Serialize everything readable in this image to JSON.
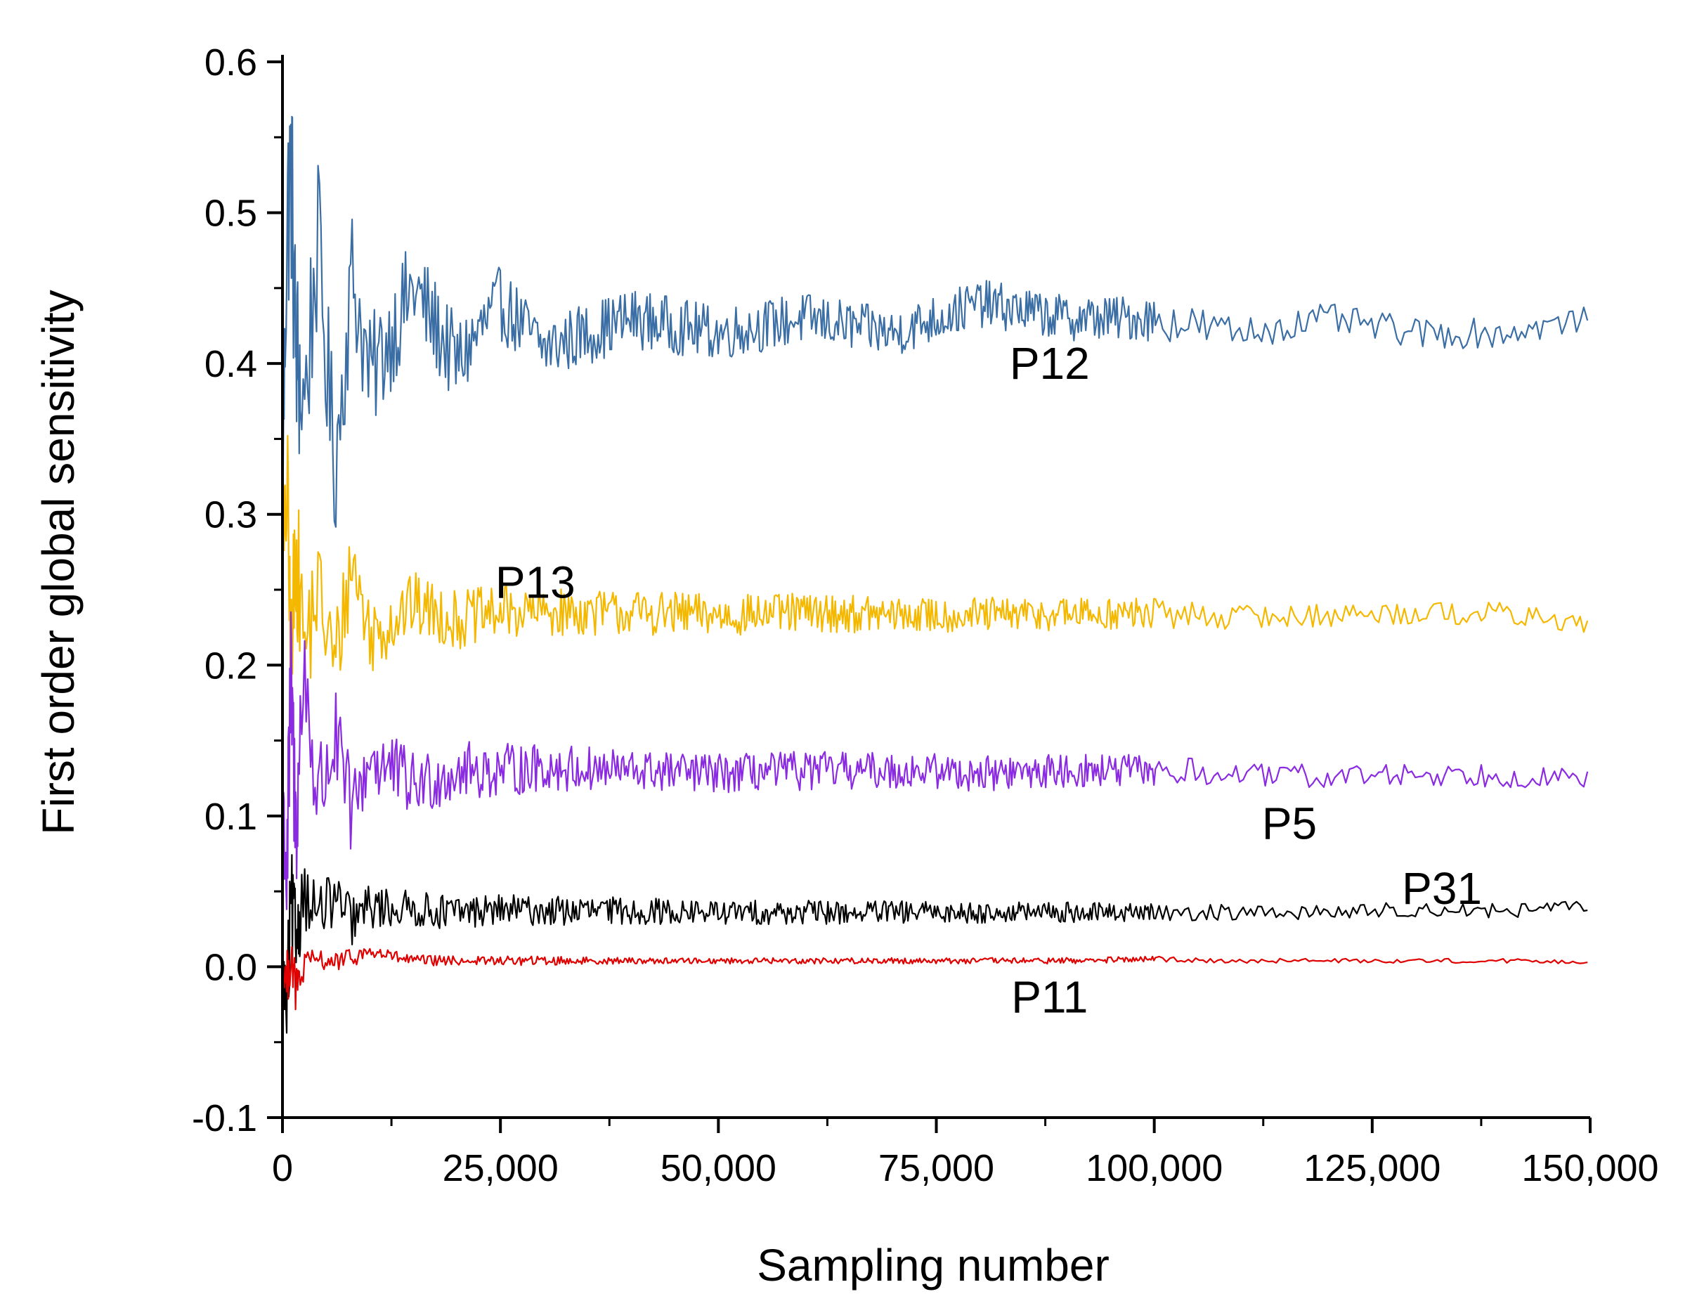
{
  "chart_data": {
    "type": "line",
    "title": "",
    "xlabel": "Sampling number",
    "ylabel": "First order global sensitivity",
    "xlim": [
      0,
      150000
    ],
    "ylim": [
      -0.1,
      0.6
    ],
    "xticks": [
      0,
      25000,
      50000,
      75000,
      100000,
      125000,
      150000
    ],
    "xtick_labels": [
      "0",
      "25,000",
      "50,000",
      "75,000",
      "100,000",
      "125,000",
      "150,000"
    ],
    "yticks": [
      -0.1,
      0.0,
      0.1,
      0.2,
      0.3,
      0.4,
      0.5,
      0.6
    ],
    "ytick_labels": [
      "-0.1",
      "0.0",
      "0.1",
      "0.2",
      "0.3",
      "0.4",
      "0.5",
      "0.6"
    ],
    "grid": false,
    "legend": "none (series labelled inline)",
    "series": [
      {
        "name": "P12",
        "color": "#3a6ea5",
        "label_at": [
          88000,
          0.4
        ],
        "x": [
          0,
          500,
          1000,
          1500,
          2500,
          4000,
          6000,
          8000,
          10000,
          15000,
          20000,
          25000,
          30000,
          40000,
          50000,
          60000,
          70000,
          75000,
          80000,
          90000,
          100000,
          110000,
          120000,
          130000,
          140000,
          150000
        ],
        "values": [
          0.31,
          0.49,
          0.53,
          0.41,
          0.37,
          0.48,
          0.33,
          0.46,
          0.39,
          0.45,
          0.4,
          0.44,
          0.41,
          0.43,
          0.42,
          0.43,
          0.42,
          0.43,
          0.44,
          0.43,
          0.43,
          0.42,
          0.43,
          0.42,
          0.42,
          0.43
        ],
        "noise": [
          0.02,
          0.07,
          0.08,
          0.07,
          0.06,
          0.06,
          0.05,
          0.045,
          0.04,
          0.035,
          0.03,
          0.025,
          0.022,
          0.02,
          0.018,
          0.017,
          0.016,
          0.016,
          0.016,
          0.015,
          0.015,
          0.011,
          0.01,
          0.01,
          0.01,
          0.008
        ]
      },
      {
        "name": "P13",
        "color": "#f5b800",
        "label_at": [
          29000,
          0.255
        ],
        "x": [
          0,
          500,
          1000,
          1500,
          2500,
          4000,
          6000,
          8000,
          10000,
          15000,
          20000,
          25000,
          30000,
          40000,
          50000,
          60000,
          70000,
          75000,
          80000,
          90000,
          100000,
          110000,
          120000,
          130000,
          140000,
          150000
        ],
        "values": [
          0.25,
          0.32,
          0.19,
          0.28,
          0.21,
          0.25,
          0.2,
          0.27,
          0.22,
          0.24,
          0.23,
          0.235,
          0.235,
          0.235,
          0.233,
          0.235,
          0.233,
          0.233,
          0.233,
          0.234,
          0.234,
          0.232,
          0.233,
          0.235,
          0.234,
          0.227
        ],
        "noise": [
          0.02,
          0.06,
          0.06,
          0.05,
          0.045,
          0.04,
          0.035,
          0.03,
          0.028,
          0.022,
          0.02,
          0.018,
          0.016,
          0.015,
          0.014,
          0.013,
          0.012,
          0.012,
          0.012,
          0.011,
          0.011,
          0.008,
          0.008,
          0.008,
          0.008,
          0.006
        ]
      },
      {
        "name": "P5",
        "color": "#8a2be2",
        "label_at": [
          115500,
          0.095
        ],
        "x": [
          0,
          500,
          1000,
          1500,
          2500,
          4000,
          6000,
          8000,
          10000,
          15000,
          20000,
          25000,
          30000,
          40000,
          50000,
          60000,
          70000,
          75000,
          80000,
          90000,
          100000,
          110000,
          120000,
          130000,
          140000,
          150000
        ],
        "values": [
          0.12,
          0.06,
          0.19,
          0.09,
          0.2,
          0.11,
          0.15,
          0.1,
          0.14,
          0.12,
          0.13,
          0.13,
          0.132,
          0.13,
          0.128,
          0.13,
          0.13,
          0.13,
          0.128,
          0.13,
          0.13,
          0.127,
          0.126,
          0.128,
          0.127,
          0.124
        ],
        "noise": [
          0.02,
          0.06,
          0.06,
          0.05,
          0.045,
          0.04,
          0.035,
          0.03,
          0.028,
          0.022,
          0.02,
          0.018,
          0.016,
          0.014,
          0.013,
          0.013,
          0.012,
          0.012,
          0.012,
          0.011,
          0.011,
          0.008,
          0.008,
          0.008,
          0.008,
          0.006
        ]
      },
      {
        "name": "P31",
        "color": "#000000",
        "label_at": [
          133000,
          0.052
        ],
        "x": [
          0,
          500,
          1000,
          1500,
          2500,
          4000,
          6000,
          8000,
          10000,
          15000,
          20000,
          25000,
          30000,
          40000,
          50000,
          60000,
          70000,
          75000,
          80000,
          90000,
          100000,
          110000,
          120000,
          130000,
          140000,
          150000
        ],
        "values": [
          0.0,
          -0.03,
          0.04,
          0.02,
          0.05,
          0.035,
          0.045,
          0.03,
          0.04,
          0.038,
          0.036,
          0.038,
          0.037,
          0.037,
          0.036,
          0.036,
          0.036,
          0.036,
          0.036,
          0.036,
          0.036,
          0.036,
          0.036,
          0.038,
          0.037,
          0.04
        ],
        "noise": [
          0.01,
          0.04,
          0.04,
          0.03,
          0.025,
          0.02,
          0.018,
          0.016,
          0.015,
          0.012,
          0.011,
          0.01,
          0.01,
          0.009,
          0.008,
          0.008,
          0.008,
          0.007,
          0.007,
          0.007,
          0.006,
          0.005,
          0.005,
          0.005,
          0.005,
          0.004
        ]
      },
      {
        "name": "P11",
        "color": "#e00000",
        "label_at": [
          88000,
          -0.02
        ],
        "x": [
          0,
          500,
          1000,
          1500,
          2500,
          4000,
          6000,
          8000,
          10000,
          15000,
          20000,
          25000,
          30000,
          40000,
          50000,
          60000,
          70000,
          75000,
          80000,
          90000,
          100000,
          110000,
          120000,
          130000,
          140000,
          150000
        ],
        "values": [
          0.0,
          -0.01,
          0.01,
          -0.015,
          0.0,
          0.005,
          0.003,
          0.006,
          0.01,
          0.004,
          0.004,
          0.004,
          0.004,
          0.004,
          0.004,
          0.004,
          0.004,
          0.004,
          0.004,
          0.004,
          0.005,
          0.004,
          0.004,
          0.004,
          0.004,
          0.003
        ],
        "noise": [
          0.005,
          0.02,
          0.018,
          0.015,
          0.01,
          0.007,
          0.006,
          0.006,
          0.005,
          0.004,
          0.003,
          0.003,
          0.003,
          0.002,
          0.002,
          0.002,
          0.002,
          0.002,
          0.002,
          0.002,
          0.002,
          0.0015,
          0.0015,
          0.0015,
          0.0015,
          0.001
        ]
      }
    ]
  }
}
